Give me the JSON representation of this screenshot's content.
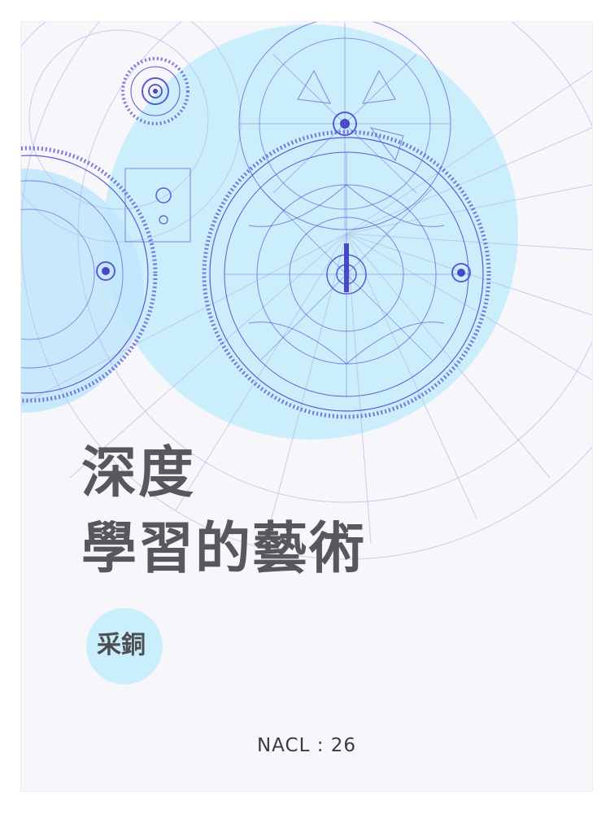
{
  "cover": {
    "title_line1": "深度",
    "title_line2": "學習的藝術",
    "author": "采銅",
    "edition_label": "NACL : 26"
  },
  "colors": {
    "disc_blue": "#c9eefc",
    "gear_line": "#5b5bd0",
    "title_text": "#58585c",
    "paper": "#f6f6fb"
  },
  "icons": {
    "illustration": "clockwork-gears-illustration"
  }
}
